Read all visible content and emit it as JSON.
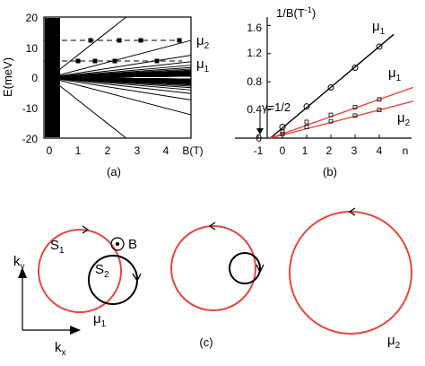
{
  "figure": {
    "panel_a": {
      "caption": "(a)",
      "ylabel": "E(meV)",
      "xlabel": "B(T)",
      "yticks": [
        "20",
        "10",
        "0",
        "-10",
        "-20"
      ],
      "xticks": [
        "0",
        "1",
        "2",
        "3",
        "4"
      ],
      "mu2": "μ",
      "mu2_sub": "2",
      "mu1": "μ",
      "mu1_sub": "1"
    },
    "panel_b": {
      "caption": "(b)",
      "ylabel": "1/B(T",
      "ylabel_exp": "-1",
      "ylabel_close": ")",
      "xlabel": "n",
      "yticks": [
        "1.6",
        "1.2",
        "0.8",
        "0.4",
        "0"
      ],
      "xticks": [
        "-1",
        "0",
        "1",
        "2",
        "3",
        "4"
      ],
      "gamma": "γ=1/2",
      "mu1_black": "μ",
      "mu1_black_sub": "1",
      "mu1_red": "μ",
      "mu1_red_sub": "1",
      "mu2_red": "μ",
      "mu2_red_sub": "2"
    },
    "panel_c": {
      "caption": "(c)",
      "s1": "S",
      "s1_sub": "1",
      "s2": "S",
      "s2_sub": "2",
      "b": "B",
      "ky": "k",
      "ky_sub": "y",
      "kx": "k",
      "kx_sub": "x",
      "mu1": "μ",
      "mu1_sub": "1",
      "mu2": "μ",
      "mu2_sub": "2"
    }
  },
  "chart_data": [
    {
      "type": "line",
      "panel": "(a)",
      "xlabel": "B(T)",
      "ylabel": "E(meV)",
      "xlim": [
        0,
        5
      ],
      "ylim": [
        -20,
        20
      ],
      "series": [
        {
          "name": "μ2",
          "values": [
            15,
            15,
            15,
            15,
            15
          ]
        },
        {
          "name": "μ1",
          "values": [
            6,
            6,
            6,
            6,
            6
          ]
        }
      ],
      "x": [
        0,
        1,
        2,
        3,
        4
      ]
    },
    {
      "type": "scatter",
      "panel": "(b)",
      "xlabel": "n",
      "ylabel": "1/B(T-1)",
      "xlim": [
        -1,
        4.8
      ],
      "ylim": [
        0,
        1.6
      ],
      "intercept_n": -0.5,
      "series": [
        {
          "name": "μ1",
          "color": "#000000",
          "x": [
            0,
            1,
            2,
            3,
            4
          ],
          "values": [
            0.16,
            0.45,
            0.72,
            1.0,
            1.3
          ]
        },
        {
          "name": "μ1",
          "color": "#e8453c",
          "x": [
            0,
            1,
            2,
            3,
            4
          ],
          "values": [
            0.09,
            0.23,
            0.33,
            0.44,
            0.55
          ]
        },
        {
          "name": "μ2",
          "color": "#e8453c",
          "x": [
            0,
            1,
            2,
            3,
            4
          ],
          "values": [
            0.06,
            0.16,
            0.24,
            0.32,
            0.4
          ]
        }
      ]
    }
  ],
  "colors": {
    "red": "#e8453c",
    "black": "#000000"
  }
}
